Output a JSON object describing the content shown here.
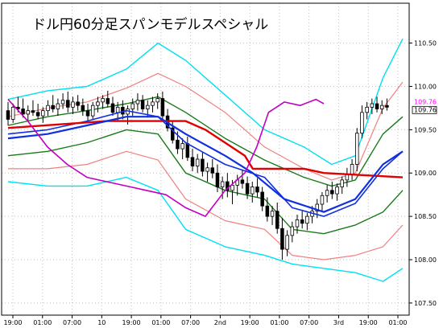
{
  "chart_data": {
    "type": "line",
    "title": "ドル円60分足スパンモデルスペシャル",
    "instrument": "USD/JPY",
    "timeframe": "60分",
    "ylim": [
      107.36,
      110.96
    ],
    "ytick_values": [
      107.5,
      108.0,
      108.5,
      109.0,
      109.5,
      110.0,
      110.5
    ],
    "ytick_labels": [
      "107.50",
      "108.00",
      "108.50",
      "109.00",
      "109.50",
      "110.00",
      "110.50"
    ],
    "xtick_labels": [
      "19:00",
      "01:00",
      "07:00",
      "10",
      "19:00",
      "01:00",
      "07:00",
      "2nd",
      "19:00",
      "01:00",
      "07:00",
      "3rd",
      "19:00",
      "01:00"
    ],
    "current_prices": [
      "109.76",
      "109.76"
    ],
    "grid": true,
    "colors": {
      "bb_outer": "#00e0f0",
      "bb_mid": "#f08080",
      "bb_inner": "#1a7a1a",
      "ma": "#1030e0",
      "span_red": "#e00000",
      "chikou": "#c000c0",
      "price_label_top": "#ff00ff",
      "candle_up": "#ffffff",
      "candle_down": "#000000"
    },
    "candles": [
      [
        109.72,
        109.82,
        109.55,
        109.62
      ],
      [
        109.62,
        109.8,
        109.58,
        109.76
      ],
      [
        109.76,
        109.88,
        109.7,
        109.74
      ],
      [
        109.74,
        109.86,
        109.64,
        109.68
      ],
      [
        109.68,
        109.78,
        109.6,
        109.72
      ],
      [
        109.72,
        109.84,
        109.66,
        109.7
      ],
      [
        109.7,
        109.8,
        109.62,
        109.66
      ],
      [
        109.66,
        109.76,
        109.58,
        109.72
      ],
      [
        109.72,
        109.84,
        109.66,
        109.78
      ],
      [
        109.78,
        109.9,
        109.7,
        109.74
      ],
      [
        109.74,
        109.86,
        109.66,
        109.8
      ],
      [
        109.8,
        109.92,
        109.74,
        109.84
      ],
      [
        109.84,
        109.94,
        109.7,
        109.76
      ],
      [
        109.76,
        109.88,
        109.68,
        109.82
      ],
      [
        109.82,
        109.9,
        109.72,
        109.78
      ],
      [
        109.78,
        109.86,
        109.66,
        109.72
      ],
      [
        109.72,
        109.8,
        109.6,
        109.66
      ],
      [
        109.66,
        109.82,
        109.62,
        109.78
      ],
      [
        109.78,
        109.88,
        109.7,
        109.82
      ],
      [
        109.82,
        109.9,
        109.74,
        109.86
      ],
      [
        109.86,
        109.95,
        109.76,
        109.8
      ],
      [
        109.8,
        109.88,
        109.66,
        109.7
      ],
      [
        109.7,
        109.82,
        109.6,
        109.76
      ],
      [
        109.76,
        109.84,
        109.62,
        109.68
      ],
      [
        109.68,
        109.78,
        109.56,
        109.74
      ],
      [
        109.74,
        109.86,
        109.66,
        109.8
      ],
      [
        109.8,
        109.92,
        109.72,
        109.84
      ],
      [
        109.84,
        109.9,
        109.7,
        109.74
      ],
      [
        109.74,
        109.84,
        109.64,
        109.78
      ],
      [
        109.78,
        109.88,
        109.7,
        109.82
      ],
      [
        109.82,
        109.92,
        109.74,
        109.86
      ],
      [
        109.86,
        109.94,
        109.62,
        109.66
      ],
      [
        109.66,
        109.74,
        109.48,
        109.52
      ],
      [
        109.52,
        109.6,
        109.34,
        109.38
      ],
      [
        109.38,
        109.48,
        109.22,
        109.28
      ],
      [
        109.28,
        109.4,
        109.16,
        109.34
      ],
      [
        109.34,
        109.42,
        109.14,
        109.18
      ],
      [
        109.18,
        109.28,
        109.02,
        109.08
      ],
      [
        109.08,
        109.22,
        109.0,
        109.16
      ],
      [
        109.16,
        109.24,
        108.96,
        109.02
      ],
      [
        109.02,
        109.12,
        108.9,
        109.06
      ],
      [
        109.06,
        109.16,
        108.94,
        109.0
      ],
      [
        109.0,
        109.1,
        108.78,
        108.84
      ],
      [
        108.84,
        108.96,
        108.7,
        108.9
      ],
      [
        108.9,
        109.0,
        108.72,
        108.8
      ],
      [
        108.8,
        108.92,
        108.64,
        108.86
      ],
      [
        108.86,
        108.98,
        108.74,
        108.92
      ],
      [
        108.92,
        109.04,
        108.82,
        108.88
      ],
      [
        108.88,
        108.96,
        108.7,
        108.76
      ],
      [
        108.76,
        108.9,
        108.66,
        108.84
      ],
      [
        108.84,
        108.94,
        108.72,
        108.78
      ],
      [
        108.78,
        108.84,
        108.56,
        108.62
      ],
      [
        108.62,
        108.72,
        108.44,
        108.5
      ],
      [
        108.5,
        108.62,
        108.4,
        108.56
      ],
      [
        108.56,
        108.66,
        108.3,
        108.36
      ],
      [
        108.36,
        108.48,
        108.0,
        108.12
      ],
      [
        108.12,
        108.34,
        108.04,
        108.28
      ],
      [
        108.28,
        108.44,
        108.2,
        108.38
      ],
      [
        108.38,
        108.52,
        108.3,
        108.46
      ],
      [
        108.46,
        108.56,
        108.36,
        108.42
      ],
      [
        108.42,
        108.54,
        108.34,
        108.5
      ],
      [
        108.5,
        108.62,
        108.42,
        108.56
      ],
      [
        108.56,
        108.7,
        108.48,
        108.64
      ],
      [
        108.64,
        108.78,
        108.56,
        108.74
      ],
      [
        108.74,
        108.86,
        108.66,
        108.8
      ],
      [
        108.8,
        108.9,
        108.7,
        108.76
      ],
      [
        108.76,
        108.88,
        108.68,
        108.84
      ],
      [
        108.84,
        108.96,
        108.76,
        108.92
      ],
      [
        108.92,
        109.06,
        108.84,
        108.98
      ],
      [
        108.98,
        109.16,
        108.92,
        109.1
      ],
      [
        109.1,
        109.52,
        109.02,
        109.46
      ],
      [
        109.46,
        109.78,
        109.4,
        109.7
      ],
      [
        109.7,
        109.82,
        109.62,
        109.76
      ],
      [
        109.76,
        109.86,
        109.68,
        109.8
      ],
      [
        109.8,
        109.88,
        109.7,
        109.74
      ],
      [
        109.74,
        109.84,
        109.68,
        109.78
      ],
      [
        109.78,
        109.86,
        109.72,
        109.76
      ]
    ],
    "series": [
      {
        "key": "bb_outer_upper",
        "values": [
          [
            0,
            109.85
          ],
          [
            0.1,
            109.95
          ],
          [
            0.2,
            110.0
          ],
          [
            0.3,
            110.2
          ],
          [
            0.38,
            110.5
          ],
          [
            0.45,
            110.3
          ],
          [
            0.55,
            109.9
          ],
          [
            0.65,
            109.5
          ],
          [
            0.75,
            109.3
          ],
          [
            0.82,
            109.1
          ],
          [
            0.88,
            109.2
          ],
          [
            0.95,
            110.1
          ],
          [
            1.0,
            110.55
          ]
        ]
      },
      {
        "key": "bb_mid_upper",
        "values": [
          [
            0,
            109.65
          ],
          [
            0.1,
            109.75
          ],
          [
            0.2,
            109.82
          ],
          [
            0.3,
            109.98
          ],
          [
            0.38,
            110.15
          ],
          [
            0.45,
            110.0
          ],
          [
            0.55,
            109.7
          ],
          [
            0.65,
            109.3
          ],
          [
            0.75,
            109.05
          ],
          [
            0.82,
            108.92
          ],
          [
            0.88,
            109.0
          ],
          [
            0.95,
            109.75
          ],
          [
            1.0,
            110.05
          ]
        ]
      },
      {
        "key": "bb_inner_upper",
        "values": [
          [
            0,
            109.55
          ],
          [
            0.1,
            109.65
          ],
          [
            0.2,
            109.72
          ],
          [
            0.3,
            109.8
          ],
          [
            0.38,
            109.88
          ],
          [
            0.45,
            109.7
          ],
          [
            0.55,
            109.4
          ],
          [
            0.65,
            109.15
          ],
          [
            0.75,
            108.95
          ],
          [
            0.82,
            108.85
          ],
          [
            0.88,
            108.92
          ],
          [
            0.95,
            109.45
          ],
          [
            1.0,
            109.65
          ]
        ]
      },
      {
        "key": "ma",
        "values": [
          [
            0,
            109.45
          ],
          [
            0.1,
            109.5
          ],
          [
            0.2,
            109.6
          ],
          [
            0.3,
            109.72
          ],
          [
            0.38,
            109.65
          ],
          [
            0.45,
            109.35
          ],
          [
            0.55,
            109.1
          ],
          [
            0.65,
            108.95
          ],
          [
            0.72,
            108.6
          ],
          [
            0.8,
            108.5
          ],
          [
            0.88,
            108.65
          ],
          [
            0.95,
            109.05
          ],
          [
            1.0,
            109.25
          ]
        ]
      },
      {
        "key": "bb_inner_lower",
        "values": [
          [
            0,
            109.2
          ],
          [
            0.1,
            109.25
          ],
          [
            0.2,
            109.35
          ],
          [
            0.3,
            109.5
          ],
          [
            0.38,
            109.45
          ],
          [
            0.45,
            109.0
          ],
          [
            0.55,
            108.8
          ],
          [
            0.65,
            108.7
          ],
          [
            0.72,
            108.35
          ],
          [
            0.8,
            108.3
          ],
          [
            0.88,
            108.4
          ],
          [
            0.95,
            108.55
          ],
          [
            1.0,
            108.8
          ]
        ]
      },
      {
        "key": "bb_mid_lower",
        "values": [
          [
            0,
            109.05
          ],
          [
            0.1,
            109.05
          ],
          [
            0.2,
            109.1
          ],
          [
            0.3,
            109.25
          ],
          [
            0.38,
            109.15
          ],
          [
            0.45,
            108.7
          ],
          [
            0.55,
            108.45
          ],
          [
            0.65,
            108.35
          ],
          [
            0.72,
            108.05
          ],
          [
            0.8,
            108.0
          ],
          [
            0.88,
            108.05
          ],
          [
            0.95,
            108.15
          ],
          [
            1.0,
            108.4
          ]
        ]
      },
      {
        "key": "bb_outer_lower",
        "values": [
          [
            0,
            108.9
          ],
          [
            0.1,
            108.85
          ],
          [
            0.2,
            108.85
          ],
          [
            0.3,
            108.95
          ],
          [
            0.38,
            108.8
          ],
          [
            0.45,
            108.35
          ],
          [
            0.55,
            108.15
          ],
          [
            0.65,
            108.05
          ],
          [
            0.72,
            107.95
          ],
          [
            0.8,
            107.9
          ],
          [
            0.88,
            107.85
          ],
          [
            0.95,
            107.75
          ],
          [
            1.0,
            107.9
          ]
        ]
      },
      {
        "key": "span_red",
        "values": [
          [
            0,
            109.52
          ],
          [
            0.25,
            109.6
          ],
          [
            0.38,
            109.6
          ],
          [
            0.45,
            109.6
          ],
          [
            0.5,
            109.5
          ],
          [
            0.55,
            109.35
          ],
          [
            0.6,
            109.2
          ],
          [
            0.62,
            109.05
          ],
          [
            0.75,
            109.05
          ],
          [
            0.8,
            109.0
          ],
          [
            1.0,
            108.95
          ]
        ]
      },
      {
        "key": "span_blue",
        "values": [
          [
            0,
            109.4
          ],
          [
            0.1,
            109.45
          ],
          [
            0.2,
            109.55
          ],
          [
            0.3,
            109.65
          ],
          [
            0.38,
            109.65
          ],
          [
            0.45,
            109.45
          ],
          [
            0.55,
            109.2
          ],
          [
            0.62,
            109.0
          ],
          [
            0.7,
            108.7
          ],
          [
            0.8,
            108.55
          ],
          [
            0.88,
            108.7
          ],
          [
            0.95,
            109.1
          ],
          [
            1.0,
            109.25
          ]
        ]
      },
      {
        "key": "chikou",
        "values": [
          [
            0,
            109.85
          ],
          [
            0.05,
            109.6
          ],
          [
            0.1,
            109.3
          ],
          [
            0.15,
            109.1
          ],
          [
            0.2,
            108.95
          ],
          [
            0.25,
            108.9
          ],
          [
            0.3,
            108.85
          ],
          [
            0.35,
            108.8
          ],
          [
            0.4,
            108.75
          ],
          [
            0.45,
            108.6
          ],
          [
            0.5,
            108.5
          ],
          [
            0.55,
            108.8
          ],
          [
            0.6,
            109.0
          ],
          [
            0.63,
            109.3
          ],
          [
            0.66,
            109.7
          ],
          [
            0.7,
            109.82
          ],
          [
            0.74,
            109.78
          ],
          [
            0.78,
            109.85
          ],
          [
            0.8,
            109.8
          ]
        ]
      }
    ]
  }
}
